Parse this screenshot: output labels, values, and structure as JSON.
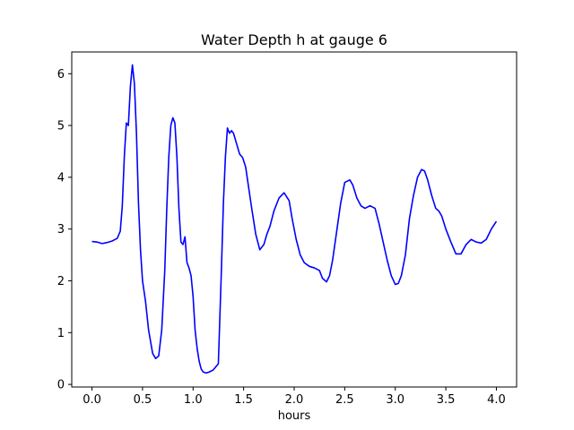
{
  "chart_data": {
    "type": "line",
    "title": "Water Depth h at gauge 6",
    "xlabel": "hours",
    "ylabel": "",
    "xlim": [
      -0.2,
      4.2
    ],
    "ylim": [
      -0.05,
      6.42
    ],
    "xticks": [
      0.0,
      0.5,
      1.0,
      1.5,
      2.0,
      2.5,
      3.0,
      3.5,
      4.0
    ],
    "xtick_labels": [
      "0.0",
      "0.5",
      "1.0",
      "1.5",
      "2.0",
      "2.5",
      "3.0",
      "3.5",
      "4.0"
    ],
    "yticks": [
      0,
      1,
      2,
      3,
      4,
      5,
      6
    ],
    "ytick_labels": [
      "0",
      "1",
      "2",
      "3",
      "4",
      "5",
      "6"
    ],
    "grid": false,
    "legend": "none",
    "colors": {
      "line": "#0000ff"
    },
    "series": [
      {
        "x": [
          0.0,
          0.05,
          0.1,
          0.15,
          0.2,
          0.25,
          0.28,
          0.3,
          0.32,
          0.34,
          0.36,
          0.38,
          0.4,
          0.42,
          0.44,
          0.46,
          0.48,
          0.5,
          0.53,
          0.56,
          0.6,
          0.63,
          0.66,
          0.69,
          0.72,
          0.74,
          0.76,
          0.78,
          0.8,
          0.82,
          0.84,
          0.86,
          0.88,
          0.9,
          0.92,
          0.94,
          0.96,
          0.98,
          1.0,
          1.02,
          1.04,
          1.06,
          1.08,
          1.1,
          1.13,
          1.16,
          1.2,
          1.25,
          1.28,
          1.3,
          1.32,
          1.34,
          1.36,
          1.38,
          1.4,
          1.43,
          1.46,
          1.49,
          1.52,
          1.55,
          1.58,
          1.62,
          1.66,
          1.7,
          1.73,
          1.76,
          1.8,
          1.85,
          1.9,
          1.95,
          1.98,
          2.02,
          2.06,
          2.1,
          2.15,
          2.2,
          2.25,
          2.28,
          2.32,
          2.35,
          2.38,
          2.42,
          2.46,
          2.5,
          2.55,
          2.58,
          2.62,
          2.66,
          2.7,
          2.75,
          2.8,
          2.84,
          2.88,
          2.92,
          2.96,
          3.0,
          3.03,
          3.06,
          3.1,
          3.14,
          3.18,
          3.22,
          3.26,
          3.29,
          3.32,
          3.36,
          3.4,
          3.43,
          3.46,
          3.5,
          3.55,
          3.6,
          3.65,
          3.7,
          3.75,
          3.8,
          3.85,
          3.9,
          3.95,
          4.0
        ],
        "y": [
          2.76,
          2.75,
          2.72,
          2.74,
          2.77,
          2.82,
          2.96,
          3.45,
          4.4,
          5.05,
          5.0,
          5.75,
          6.17,
          5.8,
          4.85,
          3.5,
          2.6,
          2.0,
          1.6,
          1.05,
          0.6,
          0.5,
          0.55,
          1.05,
          2.2,
          3.4,
          4.4,
          5.0,
          5.15,
          5.05,
          4.4,
          3.4,
          2.75,
          2.7,
          2.85,
          2.35,
          2.25,
          2.1,
          1.7,
          1.05,
          0.7,
          0.45,
          0.3,
          0.24,
          0.22,
          0.24,
          0.28,
          0.4,
          2.2,
          3.5,
          4.4,
          4.95,
          4.85,
          4.9,
          4.85,
          4.65,
          4.45,
          4.38,
          4.2,
          3.8,
          3.4,
          2.9,
          2.6,
          2.7,
          2.9,
          3.05,
          3.35,
          3.6,
          3.7,
          3.55,
          3.2,
          2.8,
          2.5,
          2.35,
          2.28,
          2.25,
          2.2,
          2.05,
          1.98,
          2.1,
          2.4,
          2.95,
          3.5,
          3.9,
          3.95,
          3.85,
          3.6,
          3.45,
          3.4,
          3.45,
          3.4,
          3.1,
          2.75,
          2.4,
          2.1,
          1.93,
          1.95,
          2.1,
          2.5,
          3.2,
          3.65,
          4.0,
          4.15,
          4.12,
          3.95,
          3.65,
          3.4,
          3.35,
          3.25,
          3.0,
          2.75,
          2.52,
          2.52,
          2.7,
          2.8,
          2.75,
          2.73,
          2.8,
          3.0,
          3.15
        ]
      }
    ]
  }
}
